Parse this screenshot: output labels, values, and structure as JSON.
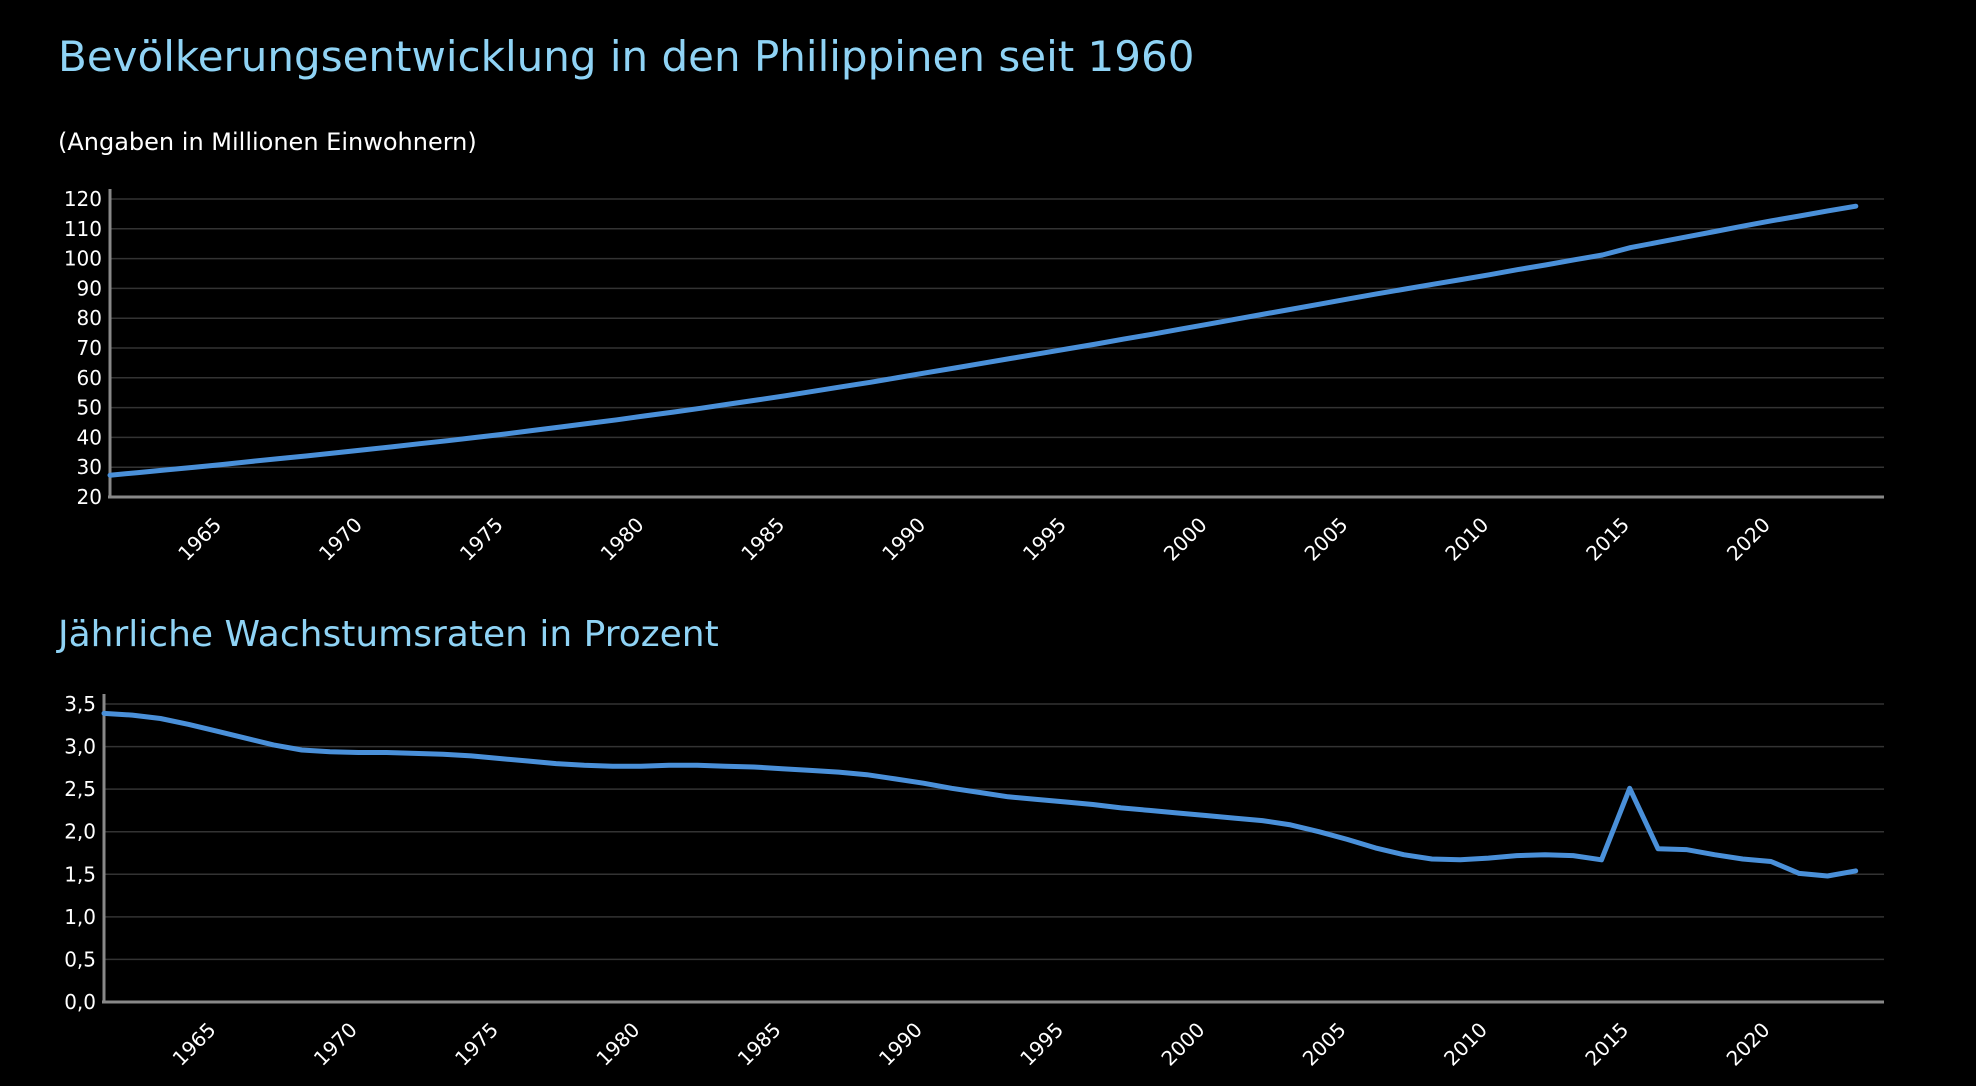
{
  "title": "Bevölkerungsentwicklung in den Philippinen seit 1960",
  "subtitle": "(Angaben in Millionen Einwohnern)",
  "second_title": "Jährliche Wachstumsraten in Prozent",
  "colors": {
    "background": "#000000",
    "title": "#8fd3f5",
    "line": "#4a90d9",
    "grid": "#333333",
    "axis": "#888888",
    "text": "#ffffff"
  },
  "chart_data": [
    {
      "type": "line",
      "title": "Bevölkerungsentwicklung in den Philippinen seit 1960",
      "subtitle": "(Angaben in Millionen Einwohnern)",
      "xlim": [
        1961,
        2024
      ],
      "ylim": [
        20,
        120
      ],
      "yticks": [
        20,
        30,
        40,
        50,
        60,
        70,
        80,
        90,
        100,
        110,
        120
      ],
      "ytick_labels": [
        "20",
        "30",
        "40",
        "50",
        "60",
        "70",
        "80",
        "90",
        "100",
        "110",
        "120"
      ],
      "xticks": [
        1965,
        1970,
        1975,
        1980,
        1985,
        1990,
        1995,
        2000,
        2005,
        2010,
        2015,
        2020
      ],
      "xtick_labels": [
        "1965",
        "1970",
        "1975",
        "1980",
        "1985",
        "1990",
        "1995",
        "2000",
        "2005",
        "2010",
        "2015",
        "2020"
      ],
      "grid": true,
      "series": [
        {
          "x": [
            1961,
            1962,
            1963,
            1964,
            1965,
            1966,
            1967,
            1968,
            1969,
            1970,
            1971,
            1972,
            1973,
            1974,
            1975,
            1976,
            1977,
            1978,
            1979,
            1980,
            1981,
            1982,
            1983,
            1984,
            1985,
            1986,
            1987,
            1988,
            1989,
            1990,
            1991,
            1992,
            1993,
            1994,
            1995,
            1996,
            1997,
            1998,
            1999,
            2000,
            2001,
            2002,
            2003,
            2004,
            2005,
            2006,
            2007,
            2008,
            2009,
            2010,
            2011,
            2012,
            2013,
            2014,
            2015,
            2016,
            2017,
            2018,
            2019,
            2020,
            2021,
            2022,
            2023
          ],
          "values": [
            27.3,
            28.2,
            29.1,
            30.0,
            30.9,
            31.9,
            32.9,
            33.8,
            34.8,
            35.8,
            36.8,
            37.9,
            38.9,
            40.0,
            41.1,
            42.3,
            43.5,
            44.7,
            45.9,
            47.2,
            48.5,
            49.8,
            51.2,
            52.6,
            54.0,
            55.5,
            57.0,
            58.5,
            60.1,
            61.7,
            63.3,
            64.9,
            66.5,
            68.1,
            69.7,
            71.3,
            73.0,
            74.6,
            76.3,
            78.0,
            79.7,
            81.4,
            83.1,
            84.8,
            86.5,
            88.2,
            89.8,
            91.4,
            93.0,
            94.6,
            96.3,
            97.9,
            99.6,
            101.2,
            103.7,
            105.5,
            107.3,
            109.1,
            110.9,
            112.7,
            114.3,
            116.0,
            117.6
          ]
        }
      ]
    },
    {
      "type": "line",
      "title": "Jährliche Wachstumsraten in Prozent",
      "xlim": [
        1961,
        2024
      ],
      "ylim": [
        0,
        3.5
      ],
      "yticks": [
        0,
        0.5,
        1.0,
        1.5,
        2.0,
        2.5,
        3.0,
        3.5
      ],
      "ytick_labels": [
        "0,0",
        "0,5",
        "1,0",
        "1,5",
        "2,0",
        "2,5",
        "3,0",
        "3,5"
      ],
      "xticks": [
        1965,
        1970,
        1975,
        1980,
        1985,
        1990,
        1995,
        2000,
        2005,
        2010,
        2015,
        2020
      ],
      "xtick_labels": [
        "1965",
        "1970",
        "1975",
        "1980",
        "1985",
        "1990",
        "1995",
        "2000",
        "2005",
        "2010",
        "2015",
        "2020"
      ],
      "grid": true,
      "series": [
        {
          "x": [
            1961,
            1962,
            1963,
            1964,
            1965,
            1966,
            1967,
            1968,
            1969,
            1970,
            1971,
            1972,
            1973,
            1974,
            1975,
            1976,
            1977,
            1978,
            1979,
            1980,
            1981,
            1982,
            1983,
            1984,
            1985,
            1986,
            1987,
            1988,
            1989,
            1990,
            1991,
            1992,
            1993,
            1994,
            1995,
            1996,
            1997,
            1998,
            1999,
            2000,
            2001,
            2002,
            2003,
            2004,
            2005,
            2006,
            2007,
            2008,
            2009,
            2010,
            2011,
            2012,
            2013,
            2014,
            2015,
            2016,
            2017,
            2018,
            2019,
            2020,
            2021,
            2022,
            2023
          ],
          "values": [
            3.39,
            3.37,
            3.33,
            3.26,
            3.18,
            3.1,
            3.02,
            2.96,
            2.94,
            2.93,
            2.93,
            2.92,
            2.91,
            2.89,
            2.86,
            2.83,
            2.8,
            2.78,
            2.77,
            2.77,
            2.78,
            2.78,
            2.77,
            2.76,
            2.74,
            2.72,
            2.7,
            2.67,
            2.62,
            2.57,
            2.51,
            2.46,
            2.41,
            2.38,
            2.35,
            2.32,
            2.28,
            2.25,
            2.22,
            2.19,
            2.16,
            2.13,
            2.08,
            2.0,
            1.91,
            1.81,
            1.73,
            1.68,
            1.67,
            1.69,
            1.72,
            1.73,
            1.72,
            1.67,
            2.51,
            1.8,
            1.79,
            1.73,
            1.68,
            1.65,
            1.51,
            1.48,
            1.54
          ]
        }
      ]
    }
  ]
}
